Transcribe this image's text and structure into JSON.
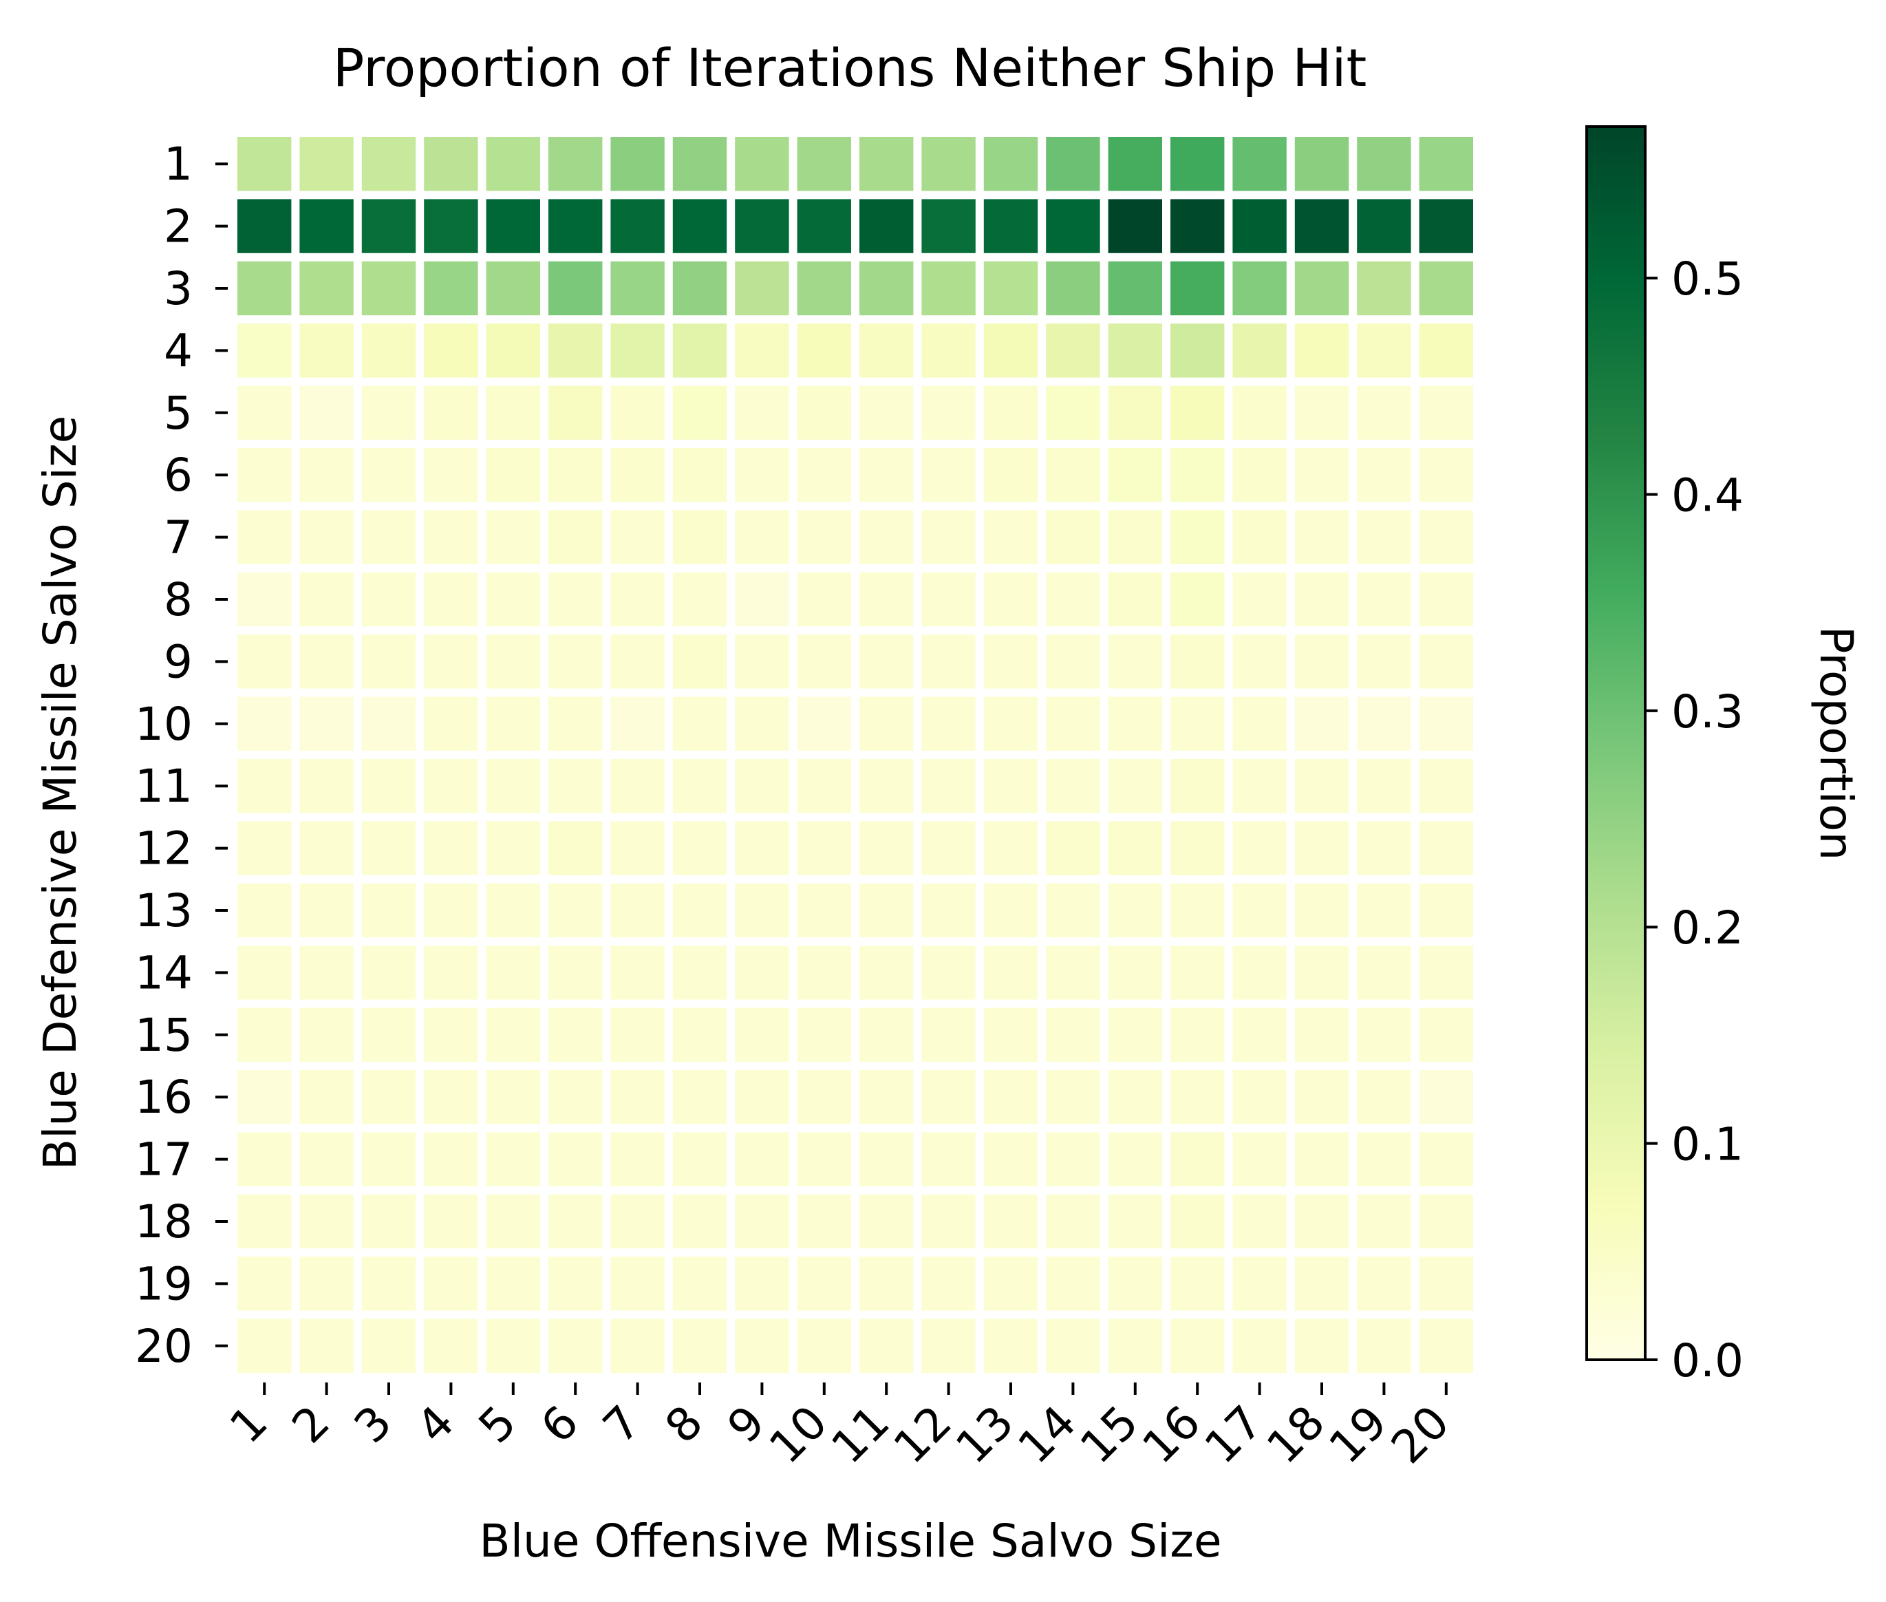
{
  "chart_data": {
    "type": "heatmap",
    "title": "Proportion of Iterations Neither Ship Hit",
    "xlabel": "Blue Offensive Missile Salvo Size",
    "ylabel": "Blue Defensive Missile Salvo Size",
    "x_categories": [
      "1",
      "2",
      "3",
      "4",
      "5",
      "6",
      "7",
      "8",
      "9",
      "10",
      "11",
      "12",
      "13",
      "14",
      "15",
      "16",
      "17",
      "18",
      "19",
      "20"
    ],
    "y_categories": [
      "1",
      "2",
      "3",
      "4",
      "5",
      "6",
      "7",
      "8",
      "9",
      "10",
      "11",
      "12",
      "13",
      "14",
      "15",
      "16",
      "17",
      "18",
      "19",
      "20"
    ],
    "colorbar": {
      "label": "Proportion",
      "range": [
        0.0,
        0.57
      ],
      "ticks": [
        0.0,
        0.1,
        0.2,
        0.3,
        0.4,
        0.5
      ],
      "tick_labels": [
        "0.0",
        "0.1",
        "0.2",
        "0.3",
        "0.4",
        "0.5"
      ],
      "colormap": "YlGn"
    },
    "values": [
      [
        0.18,
        0.16,
        0.17,
        0.19,
        0.2,
        0.23,
        0.26,
        0.25,
        0.22,
        0.23,
        0.22,
        0.22,
        0.24,
        0.3,
        0.35,
        0.36,
        0.31,
        0.26,
        0.25,
        0.24
      ],
      [
        0.51,
        0.5,
        0.48,
        0.48,
        0.5,
        0.5,
        0.49,
        0.5,
        0.49,
        0.49,
        0.52,
        0.48,
        0.49,
        0.5,
        0.57,
        0.56,
        0.52,
        0.54,
        0.51,
        0.53
      ],
      [
        0.22,
        0.21,
        0.21,
        0.24,
        0.23,
        0.28,
        0.24,
        0.25,
        0.19,
        0.23,
        0.23,
        0.21,
        0.2,
        0.26,
        0.31,
        0.35,
        0.27,
        0.23,
        0.19,
        0.22
      ],
      [
        0.05,
        0.06,
        0.06,
        0.07,
        0.08,
        0.11,
        0.12,
        0.12,
        0.06,
        0.07,
        0.06,
        0.06,
        0.08,
        0.11,
        0.14,
        0.16,
        0.11,
        0.07,
        0.06,
        0.07
      ],
      [
        0.03,
        0.02,
        0.03,
        0.04,
        0.04,
        0.06,
        0.04,
        0.05,
        0.03,
        0.04,
        0.03,
        0.03,
        0.04,
        0.05,
        0.06,
        0.07,
        0.04,
        0.03,
        0.03,
        0.03
      ],
      [
        0.03,
        0.03,
        0.03,
        0.03,
        0.04,
        0.04,
        0.04,
        0.04,
        0.03,
        0.03,
        0.03,
        0.03,
        0.04,
        0.04,
        0.05,
        0.05,
        0.04,
        0.03,
        0.03,
        0.03
      ],
      [
        0.03,
        0.03,
        0.03,
        0.03,
        0.03,
        0.04,
        0.03,
        0.04,
        0.03,
        0.03,
        0.03,
        0.03,
        0.03,
        0.04,
        0.04,
        0.05,
        0.04,
        0.03,
        0.03,
        0.03
      ],
      [
        0.02,
        0.03,
        0.03,
        0.03,
        0.03,
        0.03,
        0.03,
        0.03,
        0.02,
        0.03,
        0.03,
        0.03,
        0.03,
        0.03,
        0.04,
        0.05,
        0.03,
        0.03,
        0.03,
        0.03
      ],
      [
        0.03,
        0.03,
        0.03,
        0.03,
        0.03,
        0.03,
        0.03,
        0.04,
        0.03,
        0.03,
        0.03,
        0.03,
        0.03,
        0.03,
        0.03,
        0.04,
        0.03,
        0.03,
        0.03,
        0.03
      ],
      [
        0.02,
        0.02,
        0.02,
        0.03,
        0.03,
        0.03,
        0.02,
        0.03,
        0.03,
        0.02,
        0.03,
        0.03,
        0.03,
        0.03,
        0.03,
        0.03,
        0.03,
        0.02,
        0.02,
        0.02
      ],
      [
        0.03,
        0.03,
        0.03,
        0.03,
        0.03,
        0.03,
        0.03,
        0.03,
        0.03,
        0.03,
        0.03,
        0.03,
        0.03,
        0.03,
        0.03,
        0.04,
        0.03,
        0.03,
        0.03,
        0.03
      ],
      [
        0.03,
        0.03,
        0.03,
        0.03,
        0.03,
        0.04,
        0.03,
        0.03,
        0.03,
        0.03,
        0.03,
        0.03,
        0.03,
        0.04,
        0.04,
        0.04,
        0.03,
        0.03,
        0.03,
        0.03
      ],
      [
        0.03,
        0.03,
        0.03,
        0.03,
        0.03,
        0.03,
        0.03,
        0.03,
        0.03,
        0.03,
        0.03,
        0.03,
        0.03,
        0.03,
        0.03,
        0.03,
        0.03,
        0.03,
        0.03,
        0.03
      ],
      [
        0.03,
        0.03,
        0.03,
        0.03,
        0.03,
        0.03,
        0.03,
        0.03,
        0.03,
        0.03,
        0.03,
        0.03,
        0.03,
        0.03,
        0.03,
        0.03,
        0.03,
        0.03,
        0.03,
        0.03
      ],
      [
        0.03,
        0.03,
        0.03,
        0.03,
        0.03,
        0.03,
        0.03,
        0.03,
        0.03,
        0.03,
        0.03,
        0.03,
        0.03,
        0.03,
        0.03,
        0.03,
        0.03,
        0.03,
        0.03,
        0.03
      ],
      [
        0.02,
        0.03,
        0.03,
        0.03,
        0.03,
        0.03,
        0.03,
        0.03,
        0.03,
        0.03,
        0.03,
        0.03,
        0.03,
        0.03,
        0.03,
        0.03,
        0.03,
        0.03,
        0.03,
        0.02
      ],
      [
        0.03,
        0.03,
        0.03,
        0.03,
        0.03,
        0.03,
        0.03,
        0.03,
        0.03,
        0.03,
        0.03,
        0.03,
        0.03,
        0.03,
        0.03,
        0.04,
        0.03,
        0.03,
        0.03,
        0.03
      ],
      [
        0.03,
        0.03,
        0.03,
        0.03,
        0.03,
        0.03,
        0.03,
        0.03,
        0.03,
        0.03,
        0.03,
        0.03,
        0.03,
        0.03,
        0.03,
        0.04,
        0.03,
        0.03,
        0.03,
        0.03
      ],
      [
        0.03,
        0.03,
        0.03,
        0.03,
        0.03,
        0.03,
        0.03,
        0.03,
        0.03,
        0.03,
        0.03,
        0.03,
        0.03,
        0.03,
        0.03,
        0.03,
        0.03,
        0.03,
        0.03,
        0.03
      ],
      [
        0.03,
        0.03,
        0.03,
        0.03,
        0.03,
        0.03,
        0.03,
        0.03,
        0.03,
        0.03,
        0.03,
        0.03,
        0.03,
        0.03,
        0.03,
        0.03,
        0.03,
        0.03,
        0.03,
        0.03
      ]
    ]
  }
}
